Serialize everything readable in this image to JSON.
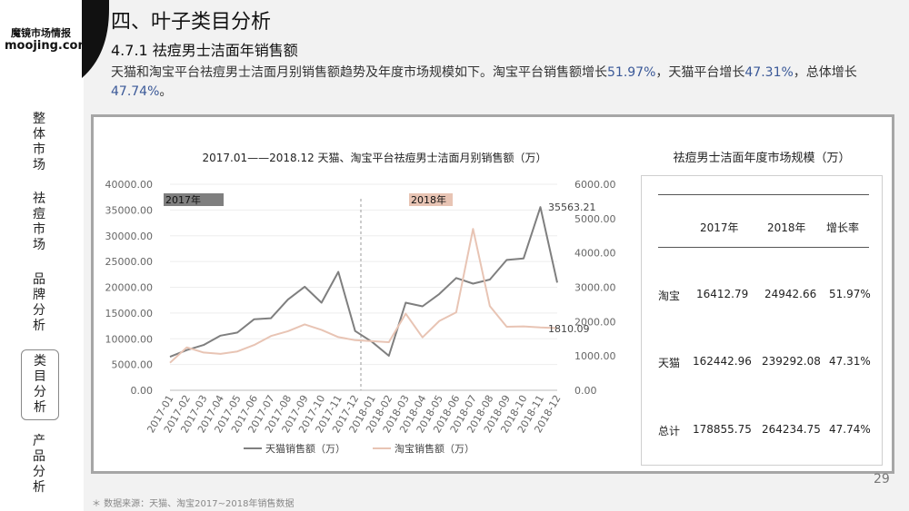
{
  "brand": {
    "name_cn": "魔镜市场情报",
    "domain": "moojing.com"
  },
  "sidebar": {
    "items": [
      {
        "label": "整体市场"
      },
      {
        "label": "祛痘市场"
      },
      {
        "label": "品牌分析"
      },
      {
        "label": "类目分析",
        "active": true
      },
      {
        "label": "产品分析"
      }
    ]
  },
  "page": {
    "title": "四、叶子类目分析",
    "subtitle": "4.7.1 祛痘男士洁面年销售额",
    "desc_parts": [
      "天猫和淘宝平台祛痘男士洁面月别销售额趋势及年度市场规模如下。淘宝平台销售额增长",
      "51.97%",
      "，天猫平台增长",
      "47.31%",
      "，总体增长",
      "47.74%",
      "。"
    ],
    "page_number": "29",
    "source": "＊ 数据来源：天猫、淘宝2017~2018年销售数据"
  },
  "chart_data": {
    "type": "line",
    "title": "2017.01——2018.12 天猫、淘宝平台祛痘男士洁面月别销售额（万）",
    "categories": [
      "2017-01",
      "2017-02",
      "2017-03",
      "2017-04",
      "2017-05",
      "2017-06",
      "2017-07",
      "2017-08",
      "2017-09",
      "2017-10",
      "2017-11",
      "2017-12",
      "2018-01",
      "2018-02",
      "2018-03",
      "2018-04",
      "2018-05",
      "2018-06",
      "2018-07",
      "2018-08",
      "2018-09",
      "2018-10",
      "2018-11",
      "2018-12"
    ],
    "series": [
      {
        "name": "天猫销售额（万）",
        "axis": "left",
        "color": "#7f7f7f",
        "values": [
          6500,
          7800,
          8800,
          10600,
          11200,
          13800,
          14000,
          17600,
          20100,
          17000,
          23000,
          11500,
          9400,
          6700,
          17000,
          16300,
          18700,
          21800,
          20700,
          21500,
          25300,
          25600,
          35563.21,
          20900
        ]
      },
      {
        "name": "淘宝销售额（万）",
        "axis": "right",
        "color": "#e8c4b4",
        "values": [
          800,
          1250,
          1100,
          1060,
          1130,
          1320,
          1580,
          1720,
          1920,
          1760,
          1550,
          1460,
          1430,
          1400,
          2230,
          1540,
          2020,
          2270,
          4700,
          2450,
          1850,
          1860,
          1830,
          1810.09
        ]
      }
    ],
    "y_left": {
      "min": 0,
      "max": 40000,
      "ticks": [
        "0.00",
        "5000.00",
        "10000.00",
        "15000.00",
        "20000.00",
        "25000.00",
        "30000.00",
        "35000.00",
        "40000.00"
      ]
    },
    "y_right": {
      "min": 0,
      "max": 6000,
      "ticks": [
        "0.00",
        "1000.00",
        "2000.00",
        "3000.00",
        "4000.00",
        "5000.00",
        "6000.00"
      ]
    },
    "annotations": {
      "year_2017": "2017年",
      "year_2018": "2018年",
      "tmall_peak": "35563.21",
      "taobao_last": "1810.09"
    },
    "legend_position": "bottom"
  },
  "table": {
    "title": "祛痘男士洁面年度市场规模（万）",
    "headers": [
      "",
      "2017年",
      "2018年",
      "增长率"
    ],
    "rows": [
      {
        "label": "淘宝",
        "v2017": "16412.79",
        "v2018": "24942.66",
        "growth": "51.97%"
      },
      {
        "label": "天猫",
        "v2017": "162442.96",
        "v2018": "239292.08",
        "growth": "47.31%"
      },
      {
        "label": "总计",
        "v2017": "178855.75",
        "v2018": "264234.75",
        "growth": "47.74%"
      }
    ]
  }
}
